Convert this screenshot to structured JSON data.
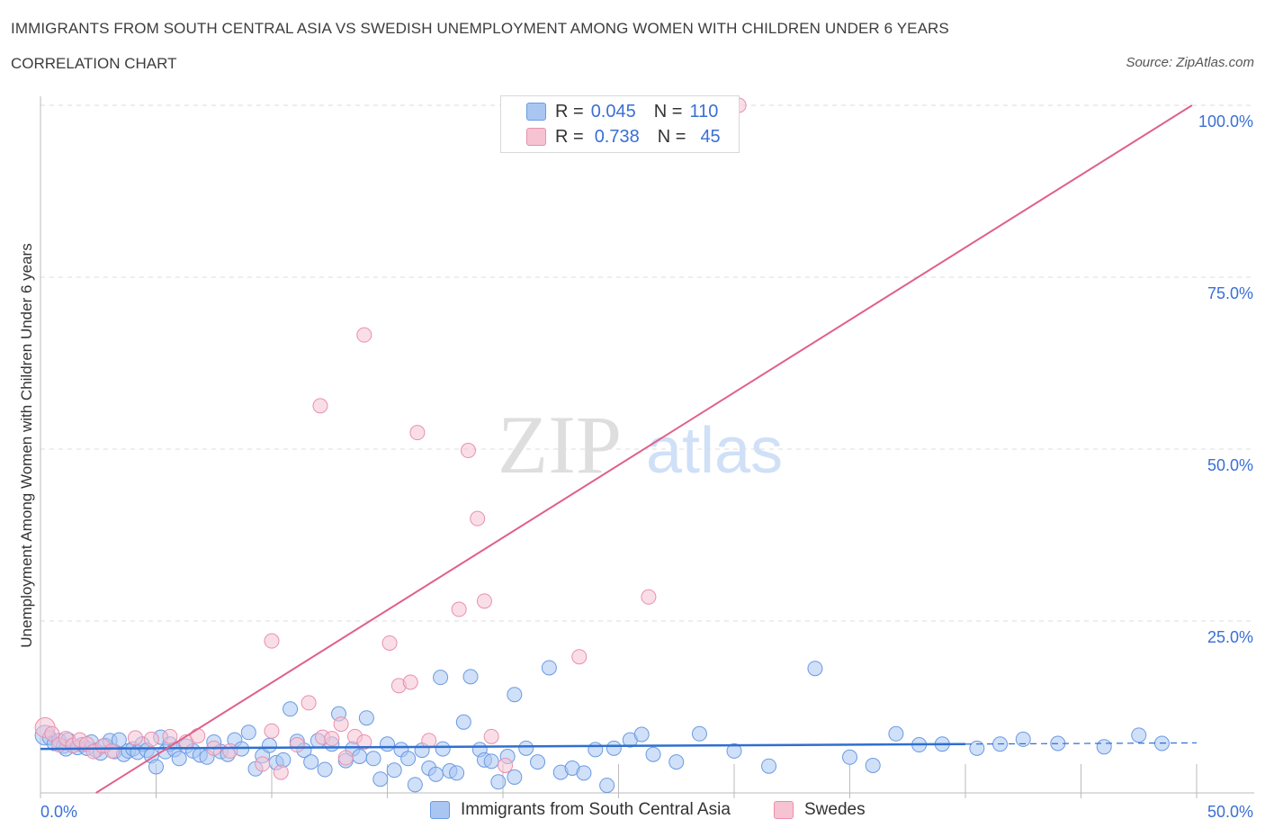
{
  "header": {
    "title": "IMMIGRANTS FROM SOUTH CENTRAL ASIA VS SWEDISH UNEMPLOYMENT AMONG WOMEN WITH CHILDREN UNDER 6 YEARS",
    "subtitle": "CORRELATION CHART",
    "source": "Source: ZipAtlas.com"
  },
  "watermark": {
    "zip": "ZIP",
    "atlas": "atlas"
  },
  "legend": {
    "rows": [
      {
        "r_label": "R =",
        "r_value": "0.045",
        "n_label": "N =",
        "n_value": "110",
        "color": "#a9c6f3"
      },
      {
        "r_label": "R =",
        "r_value": "0.738",
        "n_label": "N =",
        "n_value": "45",
        "color": "#f6b9cc"
      }
    ]
  },
  "colors": {
    "blue_fill": "#a9c6f3",
    "blue_stroke": "#6a9ae3",
    "blue_line": "#2f6fd0",
    "pink_fill": "#f6c3d3",
    "pink_stroke": "#e98fad",
    "pink_line": "#e0608a",
    "accent_text": "#3a6fd6",
    "grid": "#dcdcdc"
  },
  "chart_data": {
    "type": "scatter",
    "title": "IMMIGRANTS FROM SOUTH CENTRAL ASIA VS SWEDISH UNEMPLOYMENT AMONG WOMEN WITH CHILDREN UNDER 6 YEARS",
    "xlabel": "",
    "ylabel": "Unemployment Among Women with Children Under 6 years",
    "xlim": [
      0,
      50
    ],
    "ylim": [
      0,
      100
    ],
    "x_tick_labels": [
      "0.0%",
      "50.0%"
    ],
    "y_tick_labels": [
      "25.0%",
      "50.0%",
      "75.0%",
      "100.0%"
    ],
    "y_ticks": [
      25,
      50,
      75,
      100
    ],
    "grid": true,
    "legend_position": "bottom",
    "series": [
      {
        "name": "Immigrants from South Central Asia",
        "color": "#a9c6f3",
        "trend": {
          "x": [
            0,
            40
          ],
          "y": [
            6.4,
            7.1
          ],
          "dashed_extension_to_x": 50
        },
        "points": [
          [
            0.2,
            8.4
          ],
          [
            0.4,
            8.0
          ],
          [
            0.6,
            7.2
          ],
          [
            0.8,
            7.6
          ],
          [
            1.0,
            6.8
          ],
          [
            1.1,
            6.4
          ],
          [
            1.2,
            7.7
          ],
          [
            1.4,
            6.9
          ],
          [
            1.6,
            6.6
          ],
          [
            1.8,
            7.0
          ],
          [
            2.0,
            6.5
          ],
          [
            2.2,
            7.4
          ],
          [
            2.4,
            6.2
          ],
          [
            2.6,
            5.8
          ],
          [
            2.8,
            6.9
          ],
          [
            3.0,
            7.6
          ],
          [
            3.2,
            6.0
          ],
          [
            3.4,
            7.7
          ],
          [
            3.6,
            5.6
          ],
          [
            3.8,
            6.1
          ],
          [
            4.0,
            6.4
          ],
          [
            4.2,
            5.9
          ],
          [
            4.4,
            7.1
          ],
          [
            4.6,
            6.2
          ],
          [
            4.8,
            5.4
          ],
          [
            5.0,
            3.8
          ],
          [
            5.2,
            8.1
          ],
          [
            5.4,
            6.0
          ],
          [
            5.6,
            7.1
          ],
          [
            5.8,
            6.3
          ],
          [
            6.0,
            5.0
          ],
          [
            6.3,
            6.8
          ],
          [
            6.6,
            6.1
          ],
          [
            6.9,
            5.5
          ],
          [
            7.2,
            5.2
          ],
          [
            7.5,
            7.4
          ],
          [
            7.8,
            6.0
          ],
          [
            8.1,
            5.6
          ],
          [
            8.4,
            7.7
          ],
          [
            8.7,
            6.4
          ],
          [
            9.0,
            8.8
          ],
          [
            9.3,
            3.5
          ],
          [
            9.6,
            5.4
          ],
          [
            9.9,
            6.9
          ],
          [
            10.2,
            4.4
          ],
          [
            10.5,
            4.8
          ],
          [
            10.8,
            12.2
          ],
          [
            11.1,
            7.5
          ],
          [
            11.4,
            6.2
          ],
          [
            11.7,
            4.5
          ],
          [
            12.0,
            7.6
          ],
          [
            12.3,
            3.4
          ],
          [
            12.6,
            7.1
          ],
          [
            12.9,
            11.5
          ],
          [
            13.2,
            4.7
          ],
          [
            13.5,
            6.4
          ],
          [
            13.8,
            5.3
          ],
          [
            14.1,
            10.9
          ],
          [
            14.4,
            5.0
          ],
          [
            14.7,
            2.0
          ],
          [
            15.0,
            7.1
          ],
          [
            15.3,
            3.3
          ],
          [
            15.6,
            6.3
          ],
          [
            15.9,
            5.0
          ],
          [
            16.2,
            1.2
          ],
          [
            16.5,
            6.2
          ],
          [
            16.8,
            3.6
          ],
          [
            17.1,
            2.7
          ],
          [
            17.4,
            6.4
          ],
          [
            17.7,
            3.2
          ],
          [
            17.3,
            16.8
          ],
          [
            18.0,
            2.9
          ],
          [
            18.3,
            10.3
          ],
          [
            18.6,
            16.9
          ],
          [
            19.0,
            6.3
          ],
          [
            19.2,
            4.8
          ],
          [
            19.5,
            4.6
          ],
          [
            19.8,
            1.6
          ],
          [
            20.2,
            5.3
          ],
          [
            20.5,
            14.3
          ],
          [
            20.5,
            2.3
          ],
          [
            21.0,
            6.5
          ],
          [
            21.5,
            4.5
          ],
          [
            22.0,
            18.2
          ],
          [
            22.5,
            3.0
          ],
          [
            23.0,
            3.6
          ],
          [
            23.5,
            2.9
          ],
          [
            24.0,
            6.3
          ],
          [
            24.5,
            1.1
          ],
          [
            24.8,
            6.5
          ],
          [
            25.5,
            7.7
          ],
          [
            26.0,
            8.5
          ],
          [
            26.5,
            5.6
          ],
          [
            27.5,
            4.5
          ],
          [
            28.5,
            8.6
          ],
          [
            30.0,
            6.1
          ],
          [
            31.5,
            3.9
          ],
          [
            33.5,
            18.1
          ],
          [
            35.0,
            5.2
          ],
          [
            38.0,
            7.0
          ],
          [
            39.0,
            7.1
          ],
          [
            40.5,
            6.5
          ],
          [
            41.5,
            7.1
          ],
          [
            42.5,
            7.8
          ],
          [
            44.0,
            7.2
          ],
          [
            46.0,
            6.7
          ],
          [
            47.5,
            8.4
          ],
          [
            48.5,
            7.2
          ],
          [
            36.0,
            4.0
          ],
          [
            37.0,
            8.6
          ]
        ]
      },
      {
        "name": "Swedes",
        "color": "#f6b9cc",
        "trend": {
          "x": [
            2.4,
            49.8
          ],
          "y": [
            0,
            100
          ]
        },
        "points": [
          [
            0.2,
            9.5
          ],
          [
            0.5,
            8.6
          ],
          [
            0.8,
            7.0
          ],
          [
            1.1,
            7.9
          ],
          [
            1.4,
            6.9
          ],
          [
            1.7,
            7.7
          ],
          [
            2.0,
            7.1
          ],
          [
            2.3,
            6.0
          ],
          [
            2.7,
            6.8
          ],
          [
            3.1,
            6.1
          ],
          [
            4.1,
            8.0
          ],
          [
            4.8,
            7.8
          ],
          [
            5.6,
            8.2
          ],
          [
            6.3,
            7.4
          ],
          [
            6.8,
            8.3
          ],
          [
            7.5,
            6.5
          ],
          [
            8.2,
            6.1
          ],
          [
            9.6,
            4.2
          ],
          [
            10.0,
            9.0
          ],
          [
            10.4,
            3.0
          ],
          [
            11.1,
            7.0
          ],
          [
            11.6,
            13.1
          ],
          [
            12.2,
            8.1
          ],
          [
            12.6,
            7.9
          ],
          [
            13.0,
            10.0
          ],
          [
            13.2,
            5.1
          ],
          [
            13.6,
            8.2
          ],
          [
            14.0,
            7.4
          ],
          [
            15.5,
            15.6
          ],
          [
            16.0,
            16.1
          ],
          [
            16.8,
            7.6
          ],
          [
            20.1,
            4.0
          ],
          [
            19.5,
            8.2
          ],
          [
            23.3,
            19.8
          ],
          [
            10.0,
            22.1
          ],
          [
            15.1,
            21.8
          ],
          [
            18.1,
            26.7
          ],
          [
            19.2,
            27.9
          ],
          [
            26.3,
            28.5
          ],
          [
            18.9,
            39.9
          ],
          [
            18.5,
            49.8
          ],
          [
            16.3,
            52.4
          ],
          [
            12.1,
            56.3
          ],
          [
            14.0,
            66.6
          ],
          [
            30.2,
            100
          ]
        ]
      }
    ]
  }
}
